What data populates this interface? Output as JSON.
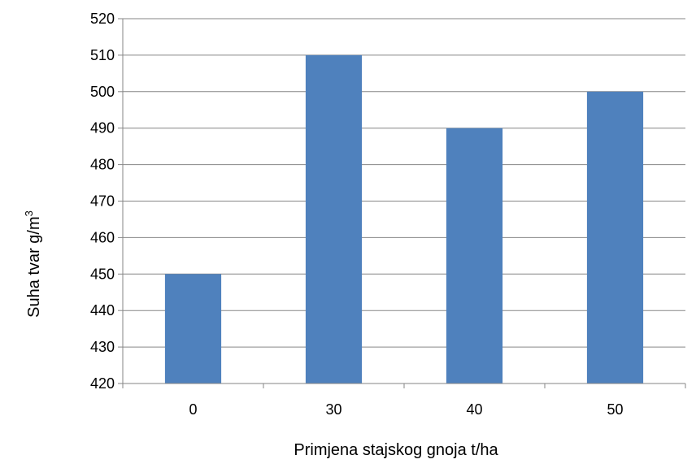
{
  "chart_data": {
    "type": "bar",
    "categories": [
      "0",
      "30",
      "40",
      "50"
    ],
    "values": [
      450,
      510,
      490,
      500
    ],
    "title": "",
    "xlabel": "Primjena stajskog gnoja t/ha",
    "ylabel": "Suha tvar g/m",
    "ylabel_superscript": "3",
    "ylim": [
      420,
      520
    ],
    "ytick_step": 10,
    "yticks": [
      "420",
      "430",
      "440",
      "450",
      "460",
      "470",
      "480",
      "490",
      "500",
      "510",
      "520"
    ],
    "grid": true,
    "legend": "none",
    "bar_color": "#4F81BD",
    "grid_color": "#868686"
  }
}
